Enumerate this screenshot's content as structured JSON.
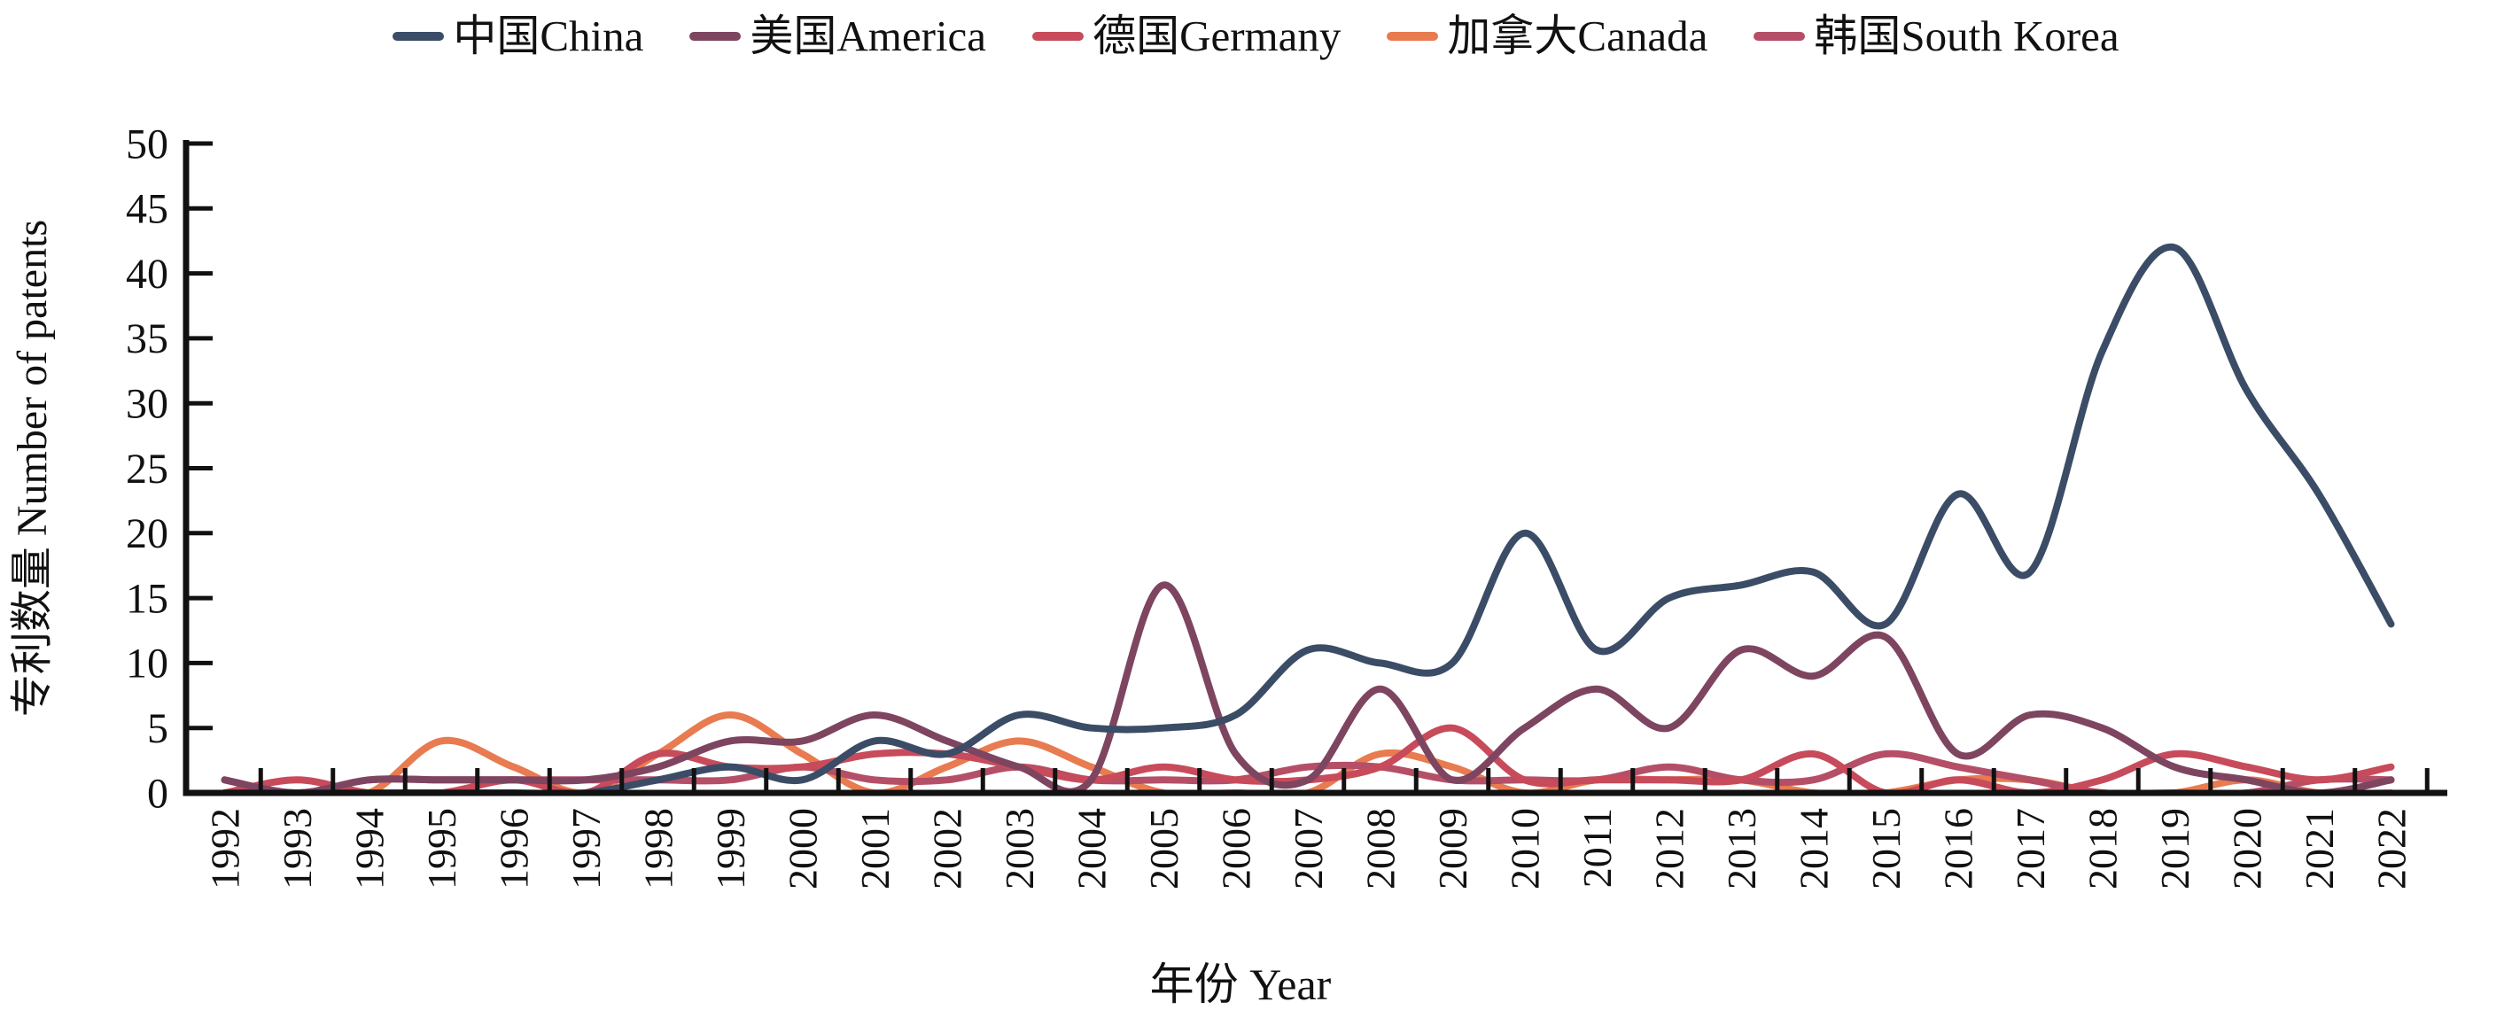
{
  "figure": {
    "x_axis_title": "年份  Year",
    "y_axis_title": "专利数量  Number of patents"
  },
  "chart_data": {
    "type": "line",
    "title": "",
    "xlabel": "年份 Year",
    "ylabel": "专利数量 Number of patents",
    "ylim": [
      0,
      50
    ],
    "y_tick_step": 5,
    "grid": false,
    "legend_position": "top",
    "smooth": true,
    "categories": [
      1992,
      1993,
      1994,
      1995,
      1996,
      1997,
      1998,
      1999,
      2000,
      2001,
      2002,
      2003,
      2004,
      2005,
      2006,
      2007,
      2008,
      2009,
      2010,
      2011,
      2012,
      2013,
      2014,
      2015,
      2016,
      2017,
      2018,
      2019,
      2020,
      2021,
      2022
    ],
    "series": [
      {
        "key": "china",
        "label": "中国China",
        "color": "#3b4c66",
        "values": [
          0,
          0,
          0,
          0,
          0,
          0,
          1,
          2,
          1,
          4,
          3,
          6,
          5,
          5,
          6,
          11,
          10,
          10,
          20,
          11,
          15,
          16,
          17,
          13,
          23,
          17,
          34,
          42,
          31,
          23,
          13
        ]
      },
      {
        "key": "america",
        "label": "美国America",
        "color": "#7e4560",
        "values": [
          1,
          0,
          1,
          1,
          1,
          1,
          2,
          4,
          4,
          6,
          4,
          2,
          1,
          16,
          3,
          1,
          8,
          1,
          5,
          8,
          5,
          11,
          9,
          12,
          3,
          6,
          5,
          2,
          1,
          0,
          1
        ]
      },
      {
        "key": "germany",
        "label": "德国Germany",
        "color": "#c74b5b",
        "values": [
          0,
          1,
          0,
          0,
          1,
          0,
          3,
          2,
          2,
          3,
          3,
          2,
          1,
          2,
          1,
          1,
          2,
          5,
          1,
          1,
          1,
          1,
          3,
          0,
          1,
          0,
          1,
          3,
          2,
          1,
          2
        ]
      },
      {
        "key": "canada",
        "label": "加拿大Canada",
        "color": "#e87b50",
        "values": [
          0,
          0,
          0,
          4,
          2,
          0,
          3,
          6,
          3,
          0,
          2,
          4,
          2,
          0,
          0,
          0,
          3,
          2,
          0,
          1,
          1,
          1,
          0,
          0,
          1,
          1,
          0,
          0,
          1,
          0,
          0
        ]
      },
      {
        "key": "south-korea",
        "label": "韩国South Korea",
        "color": "#b44f67",
        "values": [
          1,
          0,
          1,
          1,
          1,
          1,
          1,
          1,
          2,
          1,
          1,
          2,
          1,
          1,
          1,
          2,
          2,
          1,
          1,
          1,
          2,
          1,
          1,
          3,
          2,
          1,
          0,
          0,
          0,
          1,
          1
        ]
      }
    ]
  }
}
